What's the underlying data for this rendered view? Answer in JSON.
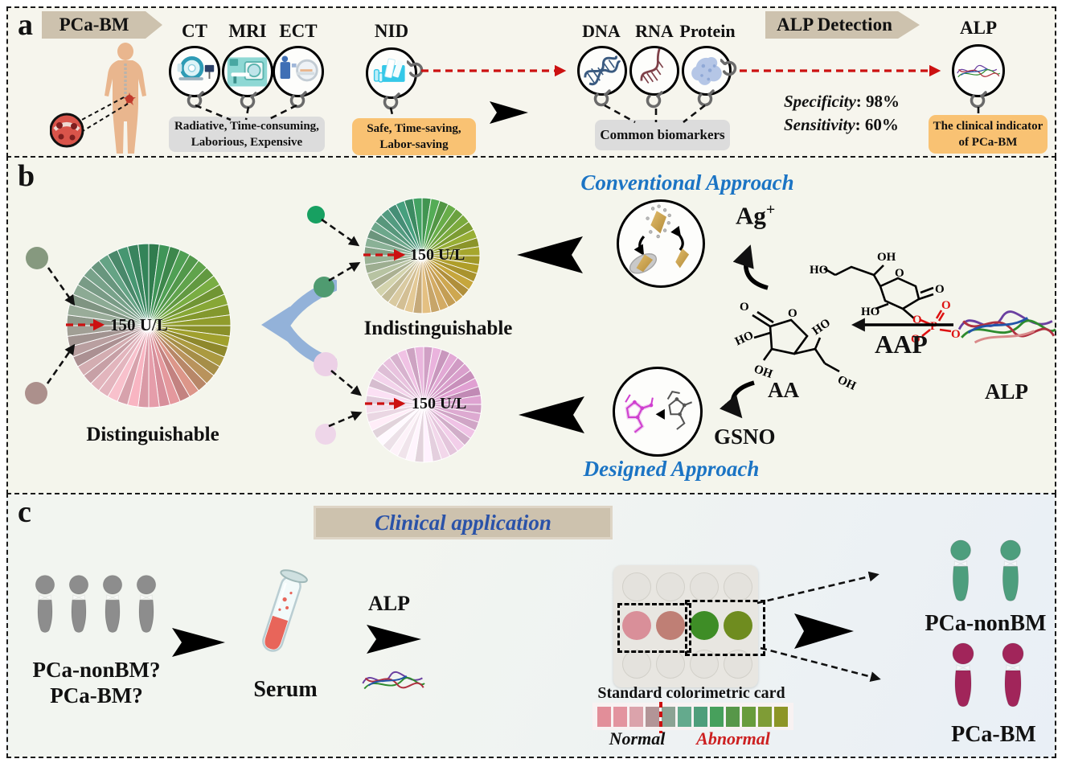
{
  "panel_a": {
    "label": "a",
    "banner": "PCa-BM",
    "modalities": [
      "CT",
      "MRI",
      "ECT"
    ],
    "modality_note": "Radiative, Time-consuming,\nLaborious, Expensive",
    "nid": "NID",
    "nid_note": "Safe, Time-saving,\nLabor-saving",
    "biomarkers": [
      "DNA",
      "RNA",
      "Protein"
    ],
    "biomarker_note": "Common biomarkers",
    "detection_banner": "ALP Detection",
    "specificity_label": "Specificity",
    "specificity_value": ": 98%",
    "sensitivity_label": "Sensitivity",
    "sensitivity_value": ": 60%",
    "alp": "ALP",
    "alp_note": "The clinical indicator\nof PCa-BM"
  },
  "panel_b": {
    "label": "b",
    "conventional_title": "Conventional Approach",
    "designed_title": "Designed Approach",
    "indistinguishable": "Indistinguishable",
    "distinguishable": "Distinguishable",
    "threshold": "150 U/L",
    "ag": "Ag",
    "ag_sup": "+",
    "aap": "AAP",
    "aa": "AA",
    "gsno": "GSNO",
    "alp": "ALP"
  },
  "panel_c": {
    "label": "c",
    "title": "Clinical application",
    "question1": "PCa-nonBM?",
    "question2": "PCa-BM?",
    "serum": "Serum",
    "alp": "ALP",
    "card_title": "Standard colorimetric card",
    "normal": "Normal",
    "abnormal": "Abnormal",
    "result_nonbm": "PCa-nonBM",
    "result_bm": "PCa-BM"
  },
  "icons": {
    "magnifier": "magnifying-glass",
    "scanner_ct": "ct-scanner",
    "scanner_mri": "mri-scanner",
    "scanner_ect": "ect-scanner",
    "dna": "dna-helix",
    "rna": "rna-helix",
    "protein": "protein-blob",
    "alp_ribbon": "protein-ribbon"
  },
  "pies": {
    "indistinguishable": {
      "r": 72,
      "slices": 40,
      "stops": [
        "#3f9b58",
        "#5ca449",
        "#7aa63a",
        "#97a02c",
        "#ab9a28",
        "#bd9a3e",
        "#cda55e",
        "#d6b67f",
        "#d9c69c",
        "#c3c4a2",
        "#a0b295",
        "#82a58c",
        "#5d9c80",
        "#42937a",
        "#3f9b58"
      ]
    },
    "designed_pink": {
      "r": 72,
      "slices": 40,
      "stops": [
        "#dcaad0",
        "#d6a0ca",
        "#d093c2",
        "#d9a9ce",
        "#e8c8e0",
        "#f4e4ee",
        "#f8eef4",
        "#f1dfea",
        "#e9cfe2",
        "#e2bcd8",
        "#dcaad0"
      ]
    },
    "distinguishable": {
      "r": 102,
      "slices": 48,
      "stops": [
        "#2e7e52",
        "#459552",
        "#5fa04a",
        "#79a238",
        "#8c992b",
        "#97942a",
        "#ae9150",
        "#d08b84",
        "#dd93a0",
        "#e7a8b4",
        "#edbcc6",
        "#c9a3a8",
        "#ab9595",
        "#93a090",
        "#84a18c",
        "#6f9d85",
        "#45906e",
        "#2e7e52"
      ]
    }
  },
  "palette": {
    "dots": {
      "green1": "#17a061",
      "green2": "#4f9b70",
      "sage": "#86997f",
      "mauve": "#ac908c",
      "pink1": "#ecd0e6",
      "pink2": "#eed6e9"
    },
    "pawns": {
      "gray": "#8d8d8d",
      "green": "#4d9e7d",
      "red": "#a1255a"
    },
    "wells": [
      "#d98f99",
      "#bf7f75",
      "#3e8d26",
      "#6f8c1f"
    ],
    "card": [
      "#e28e99",
      "#e3949f",
      "#dba3ab",
      "#b29597",
      "#8ca394",
      "#64aa8d",
      "#4f9e7b",
      "#47a05c",
      "#579749",
      "#699c3c",
      "#7f9c36",
      "#8d9526"
    ],
    "normal_color": "#111111",
    "abnormal_color": "#cc2020",
    "threshold_arrow": "#cc1111",
    "title_blue": "#1b74c4",
    "clinical_blue": "#2a52a8",
    "banner_tan": "#cdc2ae"
  }
}
